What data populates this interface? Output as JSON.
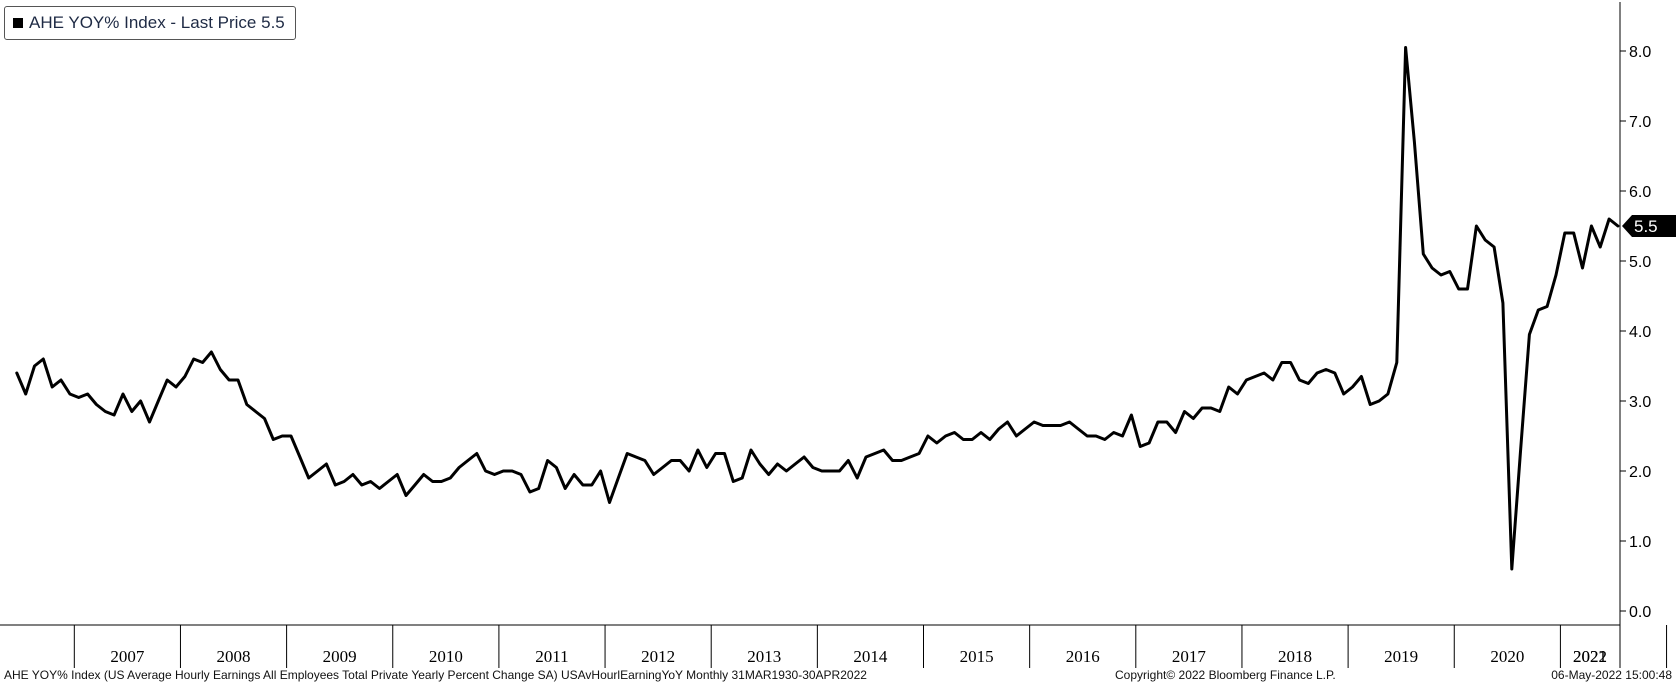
{
  "legend": {
    "label": "AHE YOY% Index - Last Price 5.5"
  },
  "footer": {
    "description": "AHE YOY% Index (US Average Hourly Earnings All Employees Total Private Yearly Percent Change SA) USAvHourlEarningYoY  Monthly 31MAR1930-30APR2022",
    "copyright": "Copyright© 2022 Bloomberg Finance L.P.",
    "timestamp": "06-May-2022 15:00:48"
  },
  "colors": {
    "line": "#000000",
    "background": "#ffffff",
    "last_price_tag": "#000000"
  },
  "chart_data": {
    "type": "line",
    "x_start": "2006-07",
    "frequency": "monthly",
    "x_axis_labels": [
      "2007",
      "2008",
      "2009",
      "2010",
      "2011",
      "2012",
      "2013",
      "2014",
      "2015",
      "2016",
      "2017",
      "2018",
      "2019",
      "2020",
      "2021",
      "2022"
    ],
    "y_axis_labels": [
      "0.0",
      "1.0",
      "2.0",
      "3.0",
      "4.0",
      "5.0",
      "6.0",
      "7.0",
      "8.0"
    ],
    "ylim": [
      -0.2,
      8.7
    ],
    "y_axis_side": "right",
    "grid": false,
    "last_price_label": "5.5",
    "series": [
      {
        "name": "AHE YOY% Index",
        "values": [
          3.4,
          3.1,
          3.5,
          3.6,
          3.2,
          3.3,
          3.1,
          3.05,
          3.1,
          2.95,
          2.85,
          2.8,
          3.1,
          2.85,
          3.0,
          2.7,
          3.0,
          3.3,
          3.2,
          3.35,
          3.6,
          3.55,
          3.7,
          3.45,
          3.3,
          3.3,
          2.95,
          2.85,
          2.75,
          2.45,
          2.5,
          2.5,
          2.2,
          1.9,
          2.0,
          2.1,
          1.8,
          1.85,
          1.95,
          1.8,
          1.85,
          1.75,
          1.85,
          1.95,
          1.65,
          1.8,
          1.95,
          1.85,
          1.85,
          1.9,
          2.05,
          2.15,
          2.25,
          2.0,
          1.95,
          2.0,
          2.0,
          1.95,
          1.7,
          1.75,
          2.15,
          2.05,
          1.75,
          1.95,
          1.8,
          1.8,
          2.0,
          1.55,
          1.9,
          2.25,
          2.2,
          2.15,
          1.95,
          2.05,
          2.15,
          2.15,
          2.0,
          2.3,
          2.05,
          2.25,
          2.25,
          1.85,
          1.9,
          2.3,
          2.1,
          1.95,
          2.1,
          2.0,
          2.1,
          2.2,
          2.05,
          2.0,
          2.0,
          2.0,
          2.15,
          1.9,
          2.2,
          2.25,
          2.3,
          2.15,
          2.15,
          2.2,
          2.25,
          2.5,
          2.4,
          2.5,
          2.55,
          2.45,
          2.45,
          2.55,
          2.45,
          2.6,
          2.7,
          2.5,
          2.6,
          2.7,
          2.65,
          2.65,
          2.65,
          2.7,
          2.6,
          2.5,
          2.5,
          2.45,
          2.55,
          2.5,
          2.8,
          2.35,
          2.4,
          2.7,
          2.7,
          2.55,
          2.85,
          2.75,
          2.9,
          2.9,
          2.85,
          3.2,
          3.1,
          3.3,
          3.35,
          3.4,
          3.3,
          3.55,
          3.55,
          3.3,
          3.25,
          3.4,
          3.45,
          3.4,
          3.1,
          3.2,
          3.35,
          2.95,
          3.0,
          3.1,
          3.55,
          8.05,
          6.7,
          5.1,
          4.9,
          4.8,
          4.85,
          4.6,
          4.6,
          5.5,
          5.3,
          5.2,
          4.4,
          0.6,
          2.3,
          3.95,
          4.3,
          4.35,
          4.8,
          5.4,
          5.4,
          4.9,
          5.5,
          5.2,
          5.6,
          5.5
        ]
      }
    ]
  }
}
